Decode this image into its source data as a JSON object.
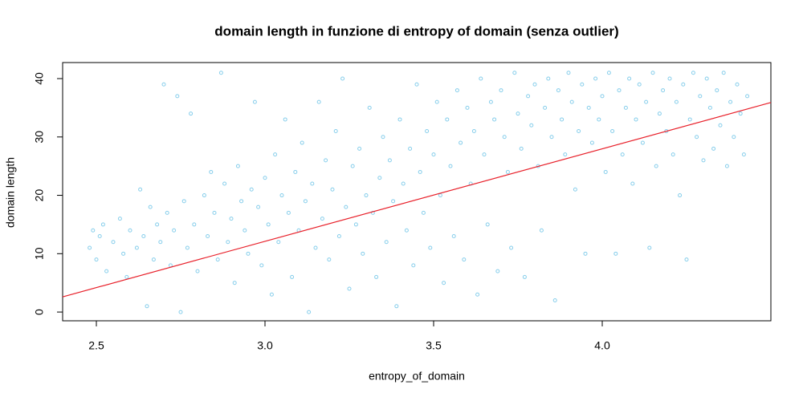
{
  "chart_data": {
    "type": "scatter",
    "title": "domain length in funzione di entropy of domain (senza outlier)",
    "x_label": "entropy_of_domain",
    "y_label": "domain length",
    "xlim": [
      2.4,
      4.5
    ],
    "ylim": [
      -1.5,
      42.75
    ],
    "xticks": [
      2.5,
      {
        "value": 3,
        "label": "3.0"
      },
      3.5,
      {
        "value": 4,
        "label": "4.0"
      }
    ],
    "yticks": [
      0,
      10,
      20,
      30,
      40
    ],
    "series": [
      {
        "color": "#87ceeb",
        "x": [
          2.48,
          2.49,
          2.5,
          2.51,
          2.52,
          2.53,
          2.55,
          2.57,
          2.58,
          2.6,
          2.59,
          2.62,
          2.63,
          2.64,
          2.65,
          2.66,
          2.67,
          2.68,
          2.69,
          2.7,
          2.71,
          2.72,
          2.73,
          2.74,
          2.75,
          2.76,
          2.77,
          2.78,
          2.79,
          2.8,
          2.82,
          2.83,
          2.84,
          2.85,
          2.86,
          2.87,
          2.88,
          2.89,
          2.9,
          2.91,
          2.92,
          2.93,
          2.94,
          2.95,
          2.96,
          2.97,
          2.98,
          2.99,
          3.0,
          3.01,
          3.02,
          3.03,
          3.04,
          3.05,
          3.06,
          3.07,
          3.08,
          3.09,
          3.1,
          3.11,
          3.12,
          3.13,
          3.14,
          3.15,
          3.16,
          3.17,
          3.18,
          3.19,
          3.2,
          3.21,
          3.22,
          3.23,
          3.24,
          3.25,
          3.26,
          3.27,
          3.28,
          3.29,
          3.3,
          3.31,
          3.32,
          3.33,
          3.34,
          3.35,
          3.36,
          3.37,
          3.38,
          3.39,
          3.4,
          3.41,
          3.42,
          3.43,
          3.44,
          3.45,
          3.46,
          3.47,
          3.48,
          3.49,
          3.5,
          3.51,
          3.52,
          3.53,
          3.54,
          3.55,
          3.56,
          3.57,
          3.58,
          3.59,
          3.6,
          3.61,
          3.62,
          3.63,
          3.64,
          3.65,
          3.66,
          3.67,
          3.68,
          3.69,
          3.7,
          3.71,
          3.72,
          3.73,
          3.74,
          3.75,
          3.76,
          3.77,
          3.78,
          3.79,
          3.8,
          3.81,
          3.82,
          3.83,
          3.84,
          3.85,
          3.86,
          3.87,
          3.88,
          3.89,
          3.9,
          3.91,
          3.92,
          3.93,
          3.94,
          3.95,
          3.96,
          3.97,
          3.98,
          3.99,
          4.0,
          4.01,
          4.02,
          4.03,
          4.04,
          4.05,
          4.06,
          4.07,
          4.08,
          4.09,
          4.1,
          4.11,
          4.12,
          4.13,
          4.14,
          4.15,
          4.16,
          4.17,
          4.18,
          4.19,
          4.2,
          4.21,
          4.22,
          4.23,
          4.24,
          4.25,
          4.26,
          4.27,
          4.28,
          4.29,
          4.3,
          4.31,
          4.32,
          4.33,
          4.34,
          4.35,
          4.36,
          4.37,
          4.38,
          4.39,
          4.4,
          4.41,
          4.42,
          4.43
        ],
        "values": [
          11,
          14,
          9,
          13,
          15,
          7,
          12,
          16,
          10,
          14,
          6,
          11,
          21,
          13,
          1,
          18,
          9,
          15,
          12,
          39,
          17,
          8,
          14,
          37,
          0,
          19,
          11,
          34,
          15,
          7,
          20,
          13,
          24,
          17,
          9,
          41,
          22,
          12,
          16,
          5,
          25,
          19,
          14,
          10,
          21,
          36,
          18,
          8,
          23,
          15,
          3,
          27,
          12,
          20,
          33,
          17,
          6,
          24,
          14,
          29,
          19,
          0,
          22,
          11,
          36,
          16,
          26,
          9,
          21,
          31,
          13,
          40,
          18,
          4,
          25,
          15,
          28,
          10,
          20,
          35,
          17,
          6,
          23,
          30,
          12,
          26,
          19,
          1,
          33,
          22,
          14,
          28,
          8,
          39,
          24,
          17,
          31,
          11,
          27,
          36,
          20,
          5,
          33,
          25,
          13,
          38,
          29,
          9,
          35,
          22,
          31,
          3,
          40,
          27,
          15,
          36,
          33,
          7,
          38,
          30,
          24,
          11,
          41,
          34,
          28,
          6,
          37,
          32,
          39,
          25,
          14,
          35,
          40,
          30,
          2,
          38,
          33,
          27,
          41,
          36,
          21,
          31,
          39,
          10,
          35,
          29,
          40,
          33,
          37,
          24,
          41,
          31,
          10,
          38,
          27,
          35,
          40,
          22,
          33,
          39,
          29,
          36,
          11,
          41,
          25,
          34,
          38,
          31,
          40,
          27,
          36,
          20,
          39,
          9,
          33,
          41,
          30,
          37,
          26,
          40,
          35,
          28,
          38,
          32,
          41,
          25,
          36,
          30,
          39,
          34,
          27,
          37
        ]
      }
    ],
    "fit_line": {
      "color": "#e8202a",
      "x": [
        2.4,
        4.5
      ],
      "values": [
        2.6,
        35.9
      ]
    }
  }
}
